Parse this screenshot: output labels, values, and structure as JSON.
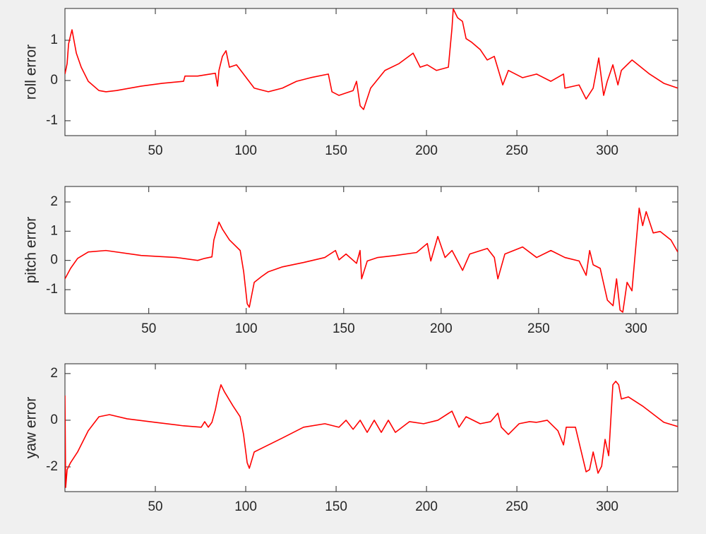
{
  "chart_data": [
    {
      "type": "line",
      "ylabel": "roll error",
      "color": "#ff0000",
      "xlim": [
        0,
        339
      ],
      "ylim": [
        -1.37,
        1.79
      ],
      "xticks": [
        50,
        100,
        150,
        200,
        250,
        300
      ],
      "yticks": [
        -1,
        0,
        1
      ],
      "x": [
        0,
        1.2,
        2.0,
        3.1,
        3.9,
        6.3,
        9.0,
        12.9,
        18.8,
        22.7,
        28.5,
        42.2,
        53.9,
        65.6,
        66.4,
        73.4,
        83.2,
        84.4,
        85.2,
        87.1,
        89.1,
        91.0,
        94.9,
        98.8,
        104.7,
        112.5,
        120.3,
        128.1,
        135.9,
        145.7,
        147.7,
        151.6,
        159.4,
        161.3,
        163.3,
        165.2,
        169.1,
        177.0,
        184.8,
        192.6,
        196.5,
        200.4,
        205.5,
        212.1,
        214.1,
        214.8,
        217.2,
        219.9,
        221.9,
        225.0,
        229.7,
        233.6,
        237.5,
        242.2,
        245.3,
        253.1,
        260.9,
        268.8,
        275.8,
        276.6,
        284.4,
        288.3,
        292.2,
        295.3,
        298.0,
        300.0,
        303.1,
        305.9,
        307.8,
        313.7,
        323.4,
        331.3,
        339
      ],
      "values": [
        0.16,
        0.42,
        0.91,
        1.12,
        1.26,
        0.68,
        0.33,
        -0.02,
        -0.25,
        -0.28,
        -0.25,
        -0.14,
        -0.07,
        -0.02,
        0.11,
        0.11,
        0.18,
        -0.14,
        0.25,
        0.6,
        0.74,
        0.33,
        0.39,
        0.16,
        -0.19,
        -0.28,
        -0.19,
        -0.02,
        0.07,
        0.16,
        -0.28,
        -0.37,
        -0.25,
        -0.02,
        -0.63,
        -0.72,
        -0.19,
        0.25,
        0.42,
        0.68,
        0.33,
        0.39,
        0.25,
        0.33,
        1.3,
        1.78,
        1.56,
        1.47,
        1.04,
        0.95,
        0.77,
        0.51,
        0.6,
        -0.11,
        0.25,
        0.07,
        0.16,
        -0.02,
        0.16,
        -0.19,
        -0.11,
        -0.46,
        -0.19,
        0.56,
        -0.37,
        -0.02,
        0.39,
        -0.11,
        0.25,
        0.51,
        0.16,
        -0.07,
        -0.19
      ]
    },
    {
      "type": "line",
      "ylabel": "pitch error",
      "color": "#ff0000",
      "xlim": [
        7,
        321.4
      ],
      "ylim": [
        -1.82,
        2.53
      ],
      "xticks": [
        50,
        100,
        150,
        200,
        250,
        300
      ],
      "yticks": [
        -1,
        0,
        1,
        2
      ],
      "x": [
        7,
        9.9,
        13.5,
        19.0,
        28.0,
        46.1,
        64.2,
        75.1,
        78.7,
        82.4,
        83.4,
        86.0,
        87.8,
        91.4,
        96.9,
        98.7,
        100.5,
        101.6,
        104.1,
        107.7,
        111.3,
        118.6,
        129.5,
        140.3,
        145.8,
        147.6,
        151.2,
        156.6,
        158.4,
        159.2,
        162.1,
        167.5,
        176.6,
        187.4,
        192.9,
        194.7,
        198.3,
        202.0,
        205.6,
        211.0,
        214.7,
        223.7,
        227.3,
        229.1,
        232.7,
        241.8,
        249.0,
        256.3,
        263.5,
        270.8,
        274.4,
        276.2,
        278.0,
        281.6,
        285.3,
        288.2,
        290.0,
        291.8,
        293.2,
        295.4,
        297.9,
        301.6,
        303.4,
        305.2,
        308.8,
        312.4,
        317.9,
        321.4
      ],
      "values": [
        -0.63,
        -0.27,
        0.07,
        0.29,
        0.34,
        0.17,
        0.1,
        0,
        0.07,
        0.12,
        0.7,
        1.31,
        1.07,
        0.7,
        0.34,
        -0.39,
        -1.48,
        -1.6,
        -0.75,
        -0.56,
        -0.39,
        -0.22,
        -0.07,
        0.1,
        0.34,
        0.02,
        0.22,
        -0.1,
        0.34,
        -0.63,
        -0.02,
        0.1,
        0.17,
        0.27,
        0.58,
        -0.02,
        0.82,
        0.1,
        0.34,
        -0.34,
        0.22,
        0.41,
        0.1,
        -0.63,
        0.22,
        0.46,
        0.1,
        0.34,
        0.1,
        -0.02,
        -0.51,
        0.34,
        -0.15,
        -0.27,
        -1.36,
        -1.55,
        -0.63,
        -1.7,
        -1.77,
        -0.75,
        -1.04,
        1.79,
        1.19,
        1.67,
        0.94,
        0.99,
        0.7,
        0.29
      ]
    },
    {
      "type": "line",
      "ylabel": "yaw error",
      "color": "#ff0000",
      "xlim": [
        0,
        339
      ],
      "ylim": [
        -3.06,
        2.42
      ],
      "xticks": [
        50,
        100,
        150,
        200,
        250,
        300
      ],
      "yticks": [
        -2,
        0,
        2
      ],
      "x": [
        0,
        0.4,
        1.2,
        3.1,
        7.0,
        12.9,
        18.8,
        24.6,
        34.4,
        50.0,
        65.6,
        75.4,
        77.3,
        79.3,
        81.3,
        83.2,
        85.2,
        86.3,
        88.3,
        93.0,
        96.9,
        98.8,
        100.8,
        102.0,
        104.7,
        112.5,
        120.3,
        132.0,
        143.8,
        151.6,
        155.5,
        159.4,
        163.3,
        167.2,
        171.1,
        175.0,
        178.9,
        182.8,
        190.6,
        198.4,
        206.3,
        214.1,
        218.0,
        221.9,
        229.7,
        235.5,
        239.5,
        241.4,
        245.3,
        251.2,
        257.0,
        260.9,
        266.8,
        272.7,
        275.8,
        277.3,
        282.4,
        285.2,
        288.3,
        290.2,
        292.2,
        294.9,
        296.9,
        298.8,
        300.8,
        303.1,
        304.7,
        306.3,
        307.8,
        311.7,
        319.5,
        331.3,
        339
      ],
      "values": [
        1.06,
        -2.88,
        -2.12,
        -1.82,
        -1.36,
        -0.45,
        0.15,
        0.24,
        0.06,
        -0.09,
        -0.24,
        -0.3,
        -0.06,
        -0.3,
        -0.09,
        0.45,
        1.21,
        1.52,
        1.21,
        0.61,
        0.15,
        -0.61,
        -1.82,
        -2.06,
        -1.36,
        -1.06,
        -0.76,
        -0.3,
        -0.15,
        -0.3,
        0,
        -0.39,
        0,
        -0.52,
        0,
        -0.52,
        0,
        -0.52,
        -0.06,
        -0.15,
        0,
        0.39,
        -0.3,
        0.15,
        -0.15,
        -0.06,
        0.3,
        -0.3,
        -0.61,
        -0.15,
        -0.06,
        -0.09,
        0,
        -0.45,
        -1.06,
        -0.3,
        -0.3,
        -1.21,
        -2.21,
        -2.12,
        -1.36,
        -2.27,
        -1.97,
        -0.82,
        -1.52,
        1.52,
        1.67,
        1.52,
        0.91,
        1.0,
        0.61,
        -0.09,
        -0.27
      ]
    }
  ]
}
